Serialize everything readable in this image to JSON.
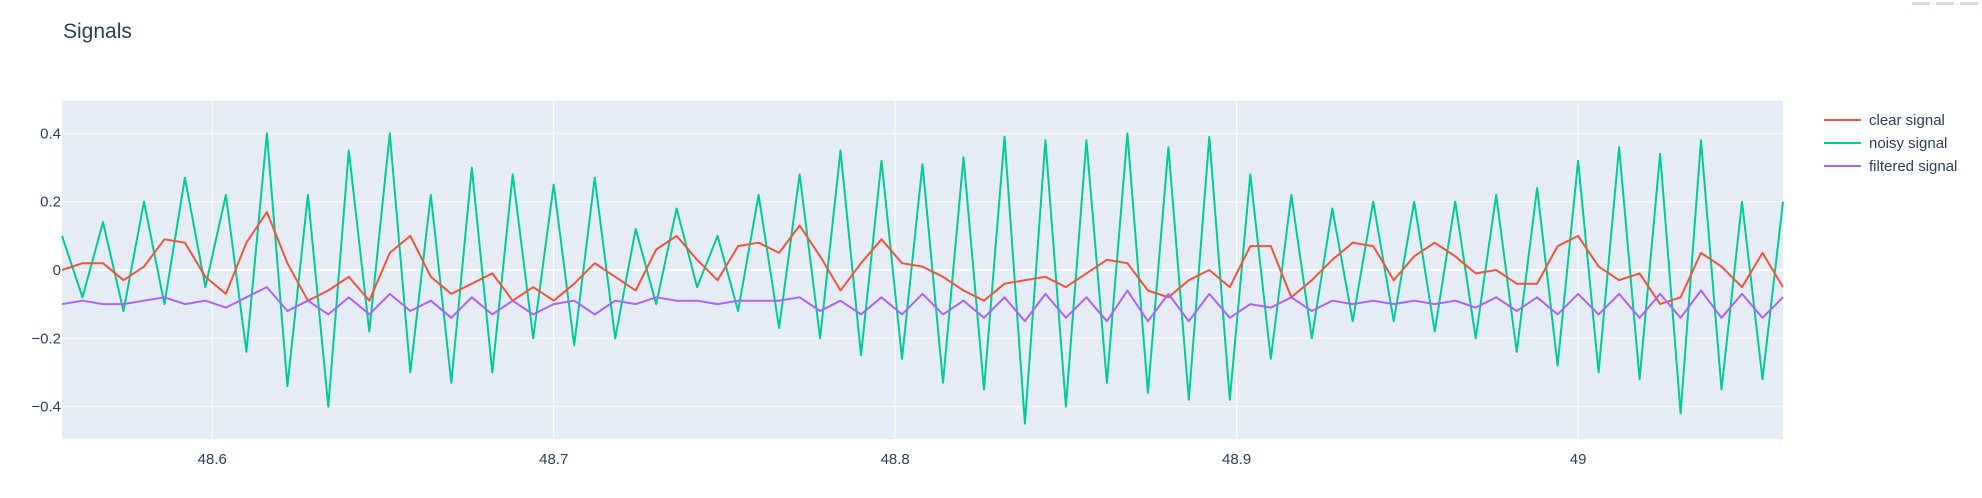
{
  "chart_data": {
    "type": "line",
    "title": "Signals",
    "xlabel": "",
    "ylabel": "",
    "xlim": [
      48.556,
      49.06
    ],
    "ylim": [
      -0.495,
      0.495
    ],
    "x_ticks": [
      48.6,
      48.7,
      48.8,
      48.9,
      49
    ],
    "x_tick_labels": [
      "48.6",
      "48.7",
      "48.8",
      "48.9",
      "49"
    ],
    "y_ticks": [
      -0.4,
      -0.2,
      0,
      0.2,
      0.4
    ],
    "y_tick_labels": [
      "−0.4",
      "−0.2",
      "0",
      "0.2",
      "0.4"
    ],
    "grid": true,
    "legend_position": "top-right",
    "series": [
      {
        "name": "clear signal",
        "color": "#EF553B",
        "x": [
          48.556,
          48.562,
          48.568,
          48.574,
          48.58,
          48.586,
          48.592,
          48.598,
          48.604,
          48.61,
          48.616,
          48.622,
          48.628,
          48.634,
          48.64,
          48.646,
          48.652,
          48.658,
          48.664,
          48.67,
          48.676,
          48.682,
          48.688,
          48.694,
          48.7,
          48.706,
          48.712,
          48.718,
          48.724,
          48.73,
          48.736,
          48.742,
          48.748,
          48.754,
          48.76,
          48.766,
          48.772,
          48.778,
          48.784,
          48.79,
          48.796,
          48.802,
          48.808,
          48.814,
          48.82,
          48.826,
          48.832,
          48.838,
          48.844,
          48.85,
          48.856,
          48.862,
          48.868,
          48.874,
          48.88,
          48.886,
          48.892,
          48.898,
          48.904,
          48.91,
          48.916,
          48.922,
          48.928,
          48.934,
          48.94,
          48.946,
          48.952,
          48.958,
          48.964,
          48.97,
          48.976,
          48.982,
          48.988,
          48.994,
          49.0,
          49.006,
          49.012,
          49.018,
          49.024,
          49.03,
          49.036,
          49.042,
          49.048,
          49.054,
          49.06
        ],
        "values": [
          0.0,
          0.02,
          0.02,
          -0.03,
          0.01,
          0.09,
          0.08,
          -0.02,
          -0.07,
          0.08,
          0.17,
          0.02,
          -0.09,
          -0.06,
          -0.02,
          -0.09,
          0.05,
          0.1,
          -0.02,
          -0.07,
          -0.04,
          -0.01,
          -0.09,
          -0.05,
          -0.09,
          -0.04,
          0.02,
          -0.02,
          -0.06,
          0.06,
          0.1,
          0.03,
          -0.03,
          0.07,
          0.08,
          0.05,
          0.13,
          0.04,
          -0.06,
          0.02,
          0.09,
          0.02,
          0.01,
          -0.02,
          -0.06,
          -0.09,
          -0.04,
          -0.03,
          -0.02,
          -0.05,
          -0.01,
          0.03,
          0.02,
          -0.06,
          -0.08,
          -0.03,
          0.0,
          -0.05,
          0.07,
          0.07,
          -0.08,
          -0.03,
          0.03,
          0.08,
          0.07,
          -0.03,
          0.04,
          0.08,
          0.04,
          -0.01,
          0.0,
          -0.04,
          -0.04,
          0.07,
          0.1,
          0.01,
          -0.03,
          -0.01,
          -0.1,
          -0.08,
          0.05,
          0.01,
          -0.05,
          0.05,
          -0.05
        ]
      },
      {
        "name": "noisy signal",
        "color": "#00CC96",
        "x": [
          48.556,
          48.562,
          48.568,
          48.574,
          48.58,
          48.586,
          48.592,
          48.598,
          48.604,
          48.61,
          48.616,
          48.622,
          48.628,
          48.634,
          48.64,
          48.646,
          48.652,
          48.658,
          48.664,
          48.67,
          48.676,
          48.682,
          48.688,
          48.694,
          48.7,
          48.706,
          48.712,
          48.718,
          48.724,
          48.73,
          48.736,
          48.742,
          48.748,
          48.754,
          48.76,
          48.766,
          48.772,
          48.778,
          48.784,
          48.79,
          48.796,
          48.802,
          48.808,
          48.814,
          48.82,
          48.826,
          48.832,
          48.838,
          48.844,
          48.85,
          48.856,
          48.862,
          48.868,
          48.874,
          48.88,
          48.886,
          48.892,
          48.898,
          48.904,
          48.91,
          48.916,
          48.922,
          48.928,
          48.934,
          48.94,
          48.946,
          48.952,
          48.958,
          48.964,
          48.97,
          48.976,
          48.982,
          48.988,
          48.994,
          49.0,
          49.006,
          49.012,
          49.018,
          49.024,
          49.03,
          49.036,
          49.042,
          49.048,
          49.054,
          49.06
        ],
        "values": [
          0.1,
          -0.08,
          0.14,
          -0.12,
          0.2,
          -0.1,
          0.27,
          -0.05,
          0.22,
          -0.24,
          0.4,
          -0.34,
          0.22,
          -0.4,
          0.35,
          -0.18,
          0.4,
          -0.3,
          0.22,
          -0.33,
          0.3,
          -0.3,
          0.28,
          -0.2,
          0.25,
          -0.22,
          0.27,
          -0.2,
          0.12,
          -0.1,
          0.18,
          -0.05,
          0.1,
          -0.12,
          0.22,
          -0.17,
          0.28,
          -0.2,
          0.35,
          -0.25,
          0.32,
          -0.26,
          0.31,
          -0.33,
          0.33,
          -0.35,
          0.39,
          -0.45,
          0.38,
          -0.4,
          0.38,
          -0.33,
          0.4,
          -0.36,
          0.36,
          -0.38,
          0.39,
          -0.38,
          0.28,
          -0.26,
          0.22,
          -0.2,
          0.18,
          -0.15,
          0.2,
          -0.15,
          0.2,
          -0.18,
          0.2,
          -0.2,
          0.22,
          -0.24,
          0.24,
          -0.28,
          0.32,
          -0.3,
          0.36,
          -0.32,
          0.34,
          -0.42,
          0.38,
          -0.35,
          0.2,
          -0.32,
          0.2
        ]
      },
      {
        "name": "filtered signal",
        "color": "#AB63FA",
        "x": [
          48.556,
          48.562,
          48.568,
          48.574,
          48.58,
          48.586,
          48.592,
          48.598,
          48.604,
          48.61,
          48.616,
          48.622,
          48.628,
          48.634,
          48.64,
          48.646,
          48.652,
          48.658,
          48.664,
          48.67,
          48.676,
          48.682,
          48.688,
          48.694,
          48.7,
          48.706,
          48.712,
          48.718,
          48.724,
          48.73,
          48.736,
          48.742,
          48.748,
          48.754,
          48.76,
          48.766,
          48.772,
          48.778,
          48.784,
          48.79,
          48.796,
          48.802,
          48.808,
          48.814,
          48.82,
          48.826,
          48.832,
          48.838,
          48.844,
          48.85,
          48.856,
          48.862,
          48.868,
          48.874,
          48.88,
          48.886,
          48.892,
          48.898,
          48.904,
          48.91,
          48.916,
          48.922,
          48.928,
          48.934,
          48.94,
          48.946,
          48.952,
          48.958,
          48.964,
          48.97,
          48.976,
          48.982,
          48.988,
          48.994,
          49.0,
          49.006,
          49.012,
          49.018,
          49.024,
          49.03,
          49.036,
          49.042,
          49.048,
          49.054,
          49.06
        ],
        "values": [
          -0.1,
          -0.09,
          -0.1,
          -0.1,
          -0.09,
          -0.08,
          -0.1,
          -0.09,
          -0.11,
          -0.08,
          -0.05,
          -0.12,
          -0.09,
          -0.13,
          -0.08,
          -0.13,
          -0.07,
          -0.12,
          -0.09,
          -0.14,
          -0.08,
          -0.13,
          -0.09,
          -0.13,
          -0.1,
          -0.09,
          -0.13,
          -0.09,
          -0.1,
          -0.08,
          -0.09,
          -0.09,
          -0.1,
          -0.09,
          -0.09,
          -0.09,
          -0.08,
          -0.12,
          -0.09,
          -0.13,
          -0.08,
          -0.13,
          -0.07,
          -0.13,
          -0.09,
          -0.14,
          -0.08,
          -0.15,
          -0.07,
          -0.14,
          -0.08,
          -0.15,
          -0.06,
          -0.15,
          -0.07,
          -0.15,
          -0.07,
          -0.14,
          -0.1,
          -0.11,
          -0.08,
          -0.12,
          -0.09,
          -0.1,
          -0.09,
          -0.1,
          -0.09,
          -0.1,
          -0.09,
          -0.11,
          -0.08,
          -0.12,
          -0.08,
          -0.13,
          -0.07,
          -0.13,
          -0.07,
          -0.14,
          -0.07,
          -0.14,
          -0.06,
          -0.14,
          -0.07,
          -0.14,
          -0.08
        ]
      }
    ]
  }
}
